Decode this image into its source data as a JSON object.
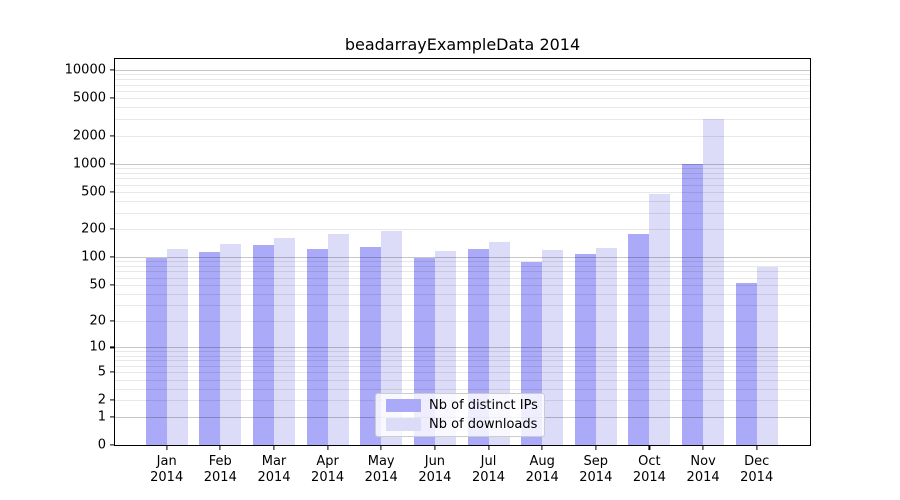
{
  "chart_data": {
    "type": "bar",
    "title": "beadarrayExampleData 2014",
    "categories": [
      "Jan 2014",
      "Feb 2014",
      "Mar 2014",
      "Apr 2014",
      "May 2014",
      "Jun 2014",
      "Jul 2014",
      "Aug 2014",
      "Sep 2014",
      "Oct 2014",
      "Nov 2014",
      "Dec 2014"
    ],
    "month_labels": [
      "Jan",
      "Feb",
      "Mar",
      "Apr",
      "May",
      "Jun",
      "Jul",
      "Aug",
      "Sep",
      "Oct",
      "Nov",
      "Dec"
    ],
    "year_label": "2014",
    "series": [
      {
        "name": "Nb of distinct IPs",
        "color": "#aaaaf8",
        "values": [
          97,
          114,
          136,
          123,
          128,
          99,
          123,
          89,
          108,
          178,
          1000,
          53
        ]
      },
      {
        "name": "Nb of downloads",
        "color": "#dcdcf8",
        "values": [
          122,
          139,
          160,
          176,
          191,
          117,
          146,
          119,
          126,
          470,
          2980,
          79
        ]
      }
    ],
    "y_ticks": [
      0,
      1,
      2,
      5,
      10,
      20,
      50,
      100,
      200,
      500,
      1000,
      2000,
      5000,
      10000
    ],
    "y_scale": "log(v+1)",
    "ylim": [
      0,
      10000
    ],
    "xlabel": "",
    "ylabel": "",
    "grid": true,
    "legend_position": "inside-bottom-center",
    "colors": {
      "background": "#ffffff",
      "frame": "#000000",
      "major_grid": "#c7c7c7",
      "minor_grid": "#e8e8e8",
      "bar_distinct_ips": "#aaaaf8",
      "bar_downloads": "#dcdcf8"
    }
  }
}
